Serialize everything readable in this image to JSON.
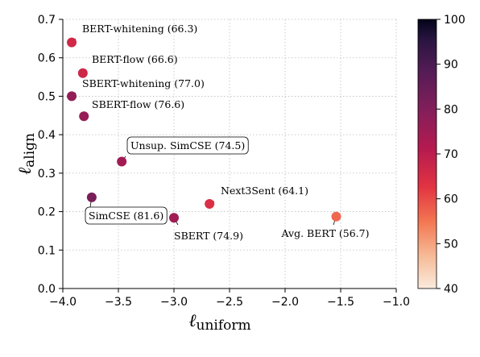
{
  "chart_data": {
    "type": "scatter",
    "xlabel": "ℓ",
    "xlabel_sub": "uniform",
    "ylabel": "ℓ",
    "ylabel_sub": "align",
    "xlim": [
      -4.0,
      -1.0
    ],
    "ylim": [
      0.0,
      0.7
    ],
    "x_ticks": [
      "−4.0",
      "−3.5",
      "−3.0",
      "−2.5",
      "−2.0",
      "−1.5",
      "−1.0"
    ],
    "x_tick_values": [
      -4.0,
      -3.5,
      -3.0,
      -2.5,
      -2.0,
      -1.5,
      -1.0
    ],
    "y_ticks": [
      "0.0",
      "0.1",
      "0.2",
      "0.3",
      "0.4",
      "0.5",
      "0.6",
      "0.7"
    ],
    "y_tick_values": [
      0.0,
      0.1,
      0.2,
      0.3,
      0.4,
      0.5,
      0.6,
      0.7
    ],
    "grid": true,
    "colorbar": {
      "min": 40,
      "max": 100,
      "ticks": [
        "40",
        "50",
        "60",
        "70",
        "80",
        "90",
        "100"
      ],
      "tick_values": [
        40,
        50,
        60,
        70,
        80,
        90,
        100
      ]
    },
    "points": [
      {
        "label": "BERT-whitening (66.3)",
        "x": -3.92,
        "y": 0.64,
        "score": 66.3,
        "boxed": false
      },
      {
        "label": "BERT-flow (66.6)",
        "x": -3.82,
        "y": 0.56,
        "score": 66.6,
        "boxed": false
      },
      {
        "label": "SBERT-whitening (77.0)",
        "x": -3.92,
        "y": 0.5,
        "score": 77.0,
        "boxed": false
      },
      {
        "label": "SBERT-flow (76.6)",
        "x": -3.81,
        "y": 0.448,
        "score": 76.6,
        "boxed": false
      },
      {
        "label": "Unsup. SimCSE (74.5)",
        "x": -3.47,
        "y": 0.33,
        "score": 74.5,
        "boxed": true
      },
      {
        "label": "SimCSE (81.6)",
        "x": -3.74,
        "y": 0.237,
        "score": 81.6,
        "boxed": true
      },
      {
        "label": "Next3Sent (64.1)",
        "x": -2.68,
        "y": 0.22,
        "score": 64.1,
        "boxed": false
      },
      {
        "label": "SBERT (74.9)",
        "x": -3.0,
        "y": 0.184,
        "score": 74.9,
        "boxed": false
      },
      {
        "label": "Avg. BERT (56.7)",
        "x": -1.54,
        "y": 0.187,
        "score": 56.7,
        "boxed": false
      }
    ]
  }
}
